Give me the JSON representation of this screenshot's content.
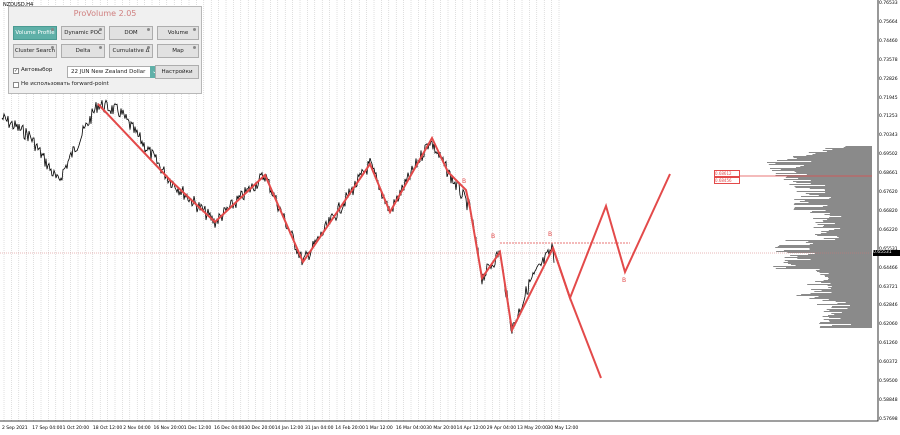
{
  "chart": {
    "symbol": "NZDUSD,H4",
    "current_price": "0.65531",
    "price_levels": [
      "0.76533",
      "0.75664",
      "0.74460",
      "0.73578",
      "0.72826",
      "0.71945",
      "0.71253",
      "0.70343",
      "0.69502",
      "0.68661",
      "0.67620",
      "0.66820",
      "0.66220",
      "0.65531",
      "0.64466",
      "0.63721",
      "0.62846",
      "0.62060",
      "0.61260",
      "0.60372",
      "0.59500",
      "0.58848",
      "0.57698"
    ],
    "time_labels": [
      "2 Sep 2021",
      "17 Sep 04:00",
      "1 Oct 20:00",
      "18 Oct 12:00",
      "2 Nov 04:00",
      "16 Nov 20:00",
      "1 Dec 12:00",
      "16 Dec 04:00",
      "30 Dec 20:00",
      "14 Jan 12:00",
      "31 Jan 04:00",
      "14 Feb 20:00",
      "1 Mar 12:00",
      "16 Mar 04:00",
      "30 Mar 20:00",
      "14 Apr 12:00",
      "29 Apr 04:00",
      "13 May 20:00",
      "30 May 12:00"
    ],
    "volume_labels": [
      "0.68612",
      "0.68456"
    ],
    "wave_labels": [
      "B",
      "B",
      "B",
      "B",
      "B"
    ],
    "colors": {
      "wave": "#e34a4a",
      "candle": "#000000",
      "profile": "#8a8a8a",
      "grid": "#b0b0b0"
    }
  },
  "panel": {
    "title": "ProVolume 2.05",
    "buttons": [
      {
        "label": "Volume Profile",
        "active": true
      },
      {
        "label": "Dynamic POC",
        "active": false
      },
      {
        "label": "DOM",
        "active": false
      },
      {
        "label": "Volume",
        "active": false
      },
      {
        "label": "Cluster Search",
        "active": false
      },
      {
        "label": "Delta",
        "active": false
      },
      {
        "label": "Cumulative Δ",
        "active": false
      },
      {
        "label": "Map",
        "active": false
      }
    ],
    "autoselect_label": "Автовыбор",
    "instrument_value": "22 JUN New Zealand Dollar",
    "settings_label": "Настройки",
    "forward_point_label": "Не использовать forward-point"
  }
}
